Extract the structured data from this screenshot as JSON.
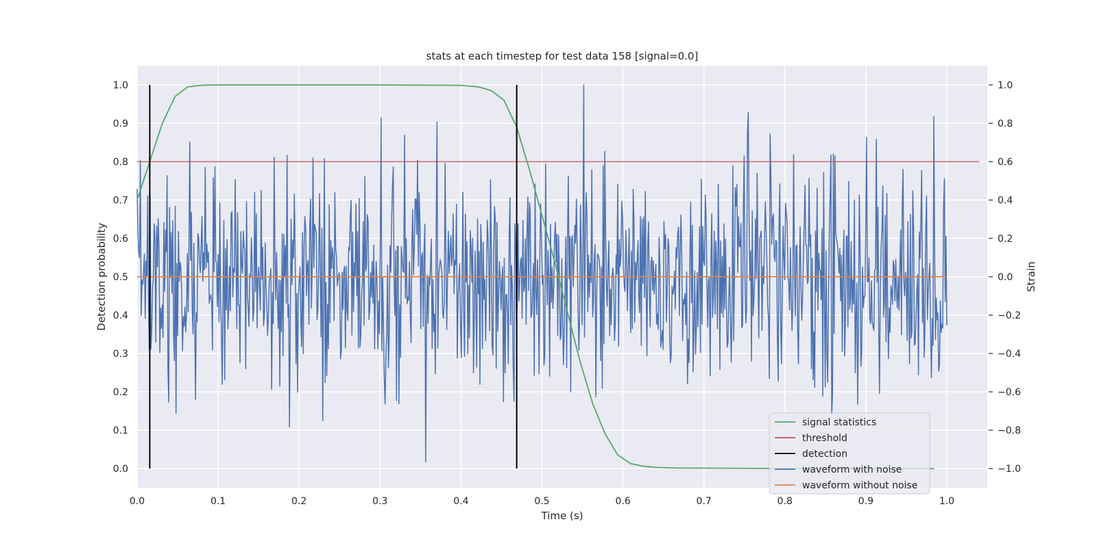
{
  "chart_data": {
    "type": "line",
    "title": "stats at each timestep for test data 158 [signal=0.0]",
    "xlabel": "Time (s)",
    "ylabel_left": "Detection probability",
    "ylabel_right": "Strain",
    "xlim": [
      0.0,
      1.05
    ],
    "ylim_left": [
      -0.05,
      1.05
    ],
    "ylim_right": [
      -1.1,
      1.1
    ],
    "x_ticks": [
      "0.0",
      "0.1",
      "0.2",
      "0.3",
      "0.4",
      "0.5",
      "0.6",
      "0.7",
      "0.8",
      "0.9",
      "1.0"
    ],
    "y_left_ticks": [
      "0.0",
      "0.1",
      "0.2",
      "0.3",
      "0.4",
      "0.5",
      "0.6",
      "0.7",
      "0.8",
      "0.9",
      "1.0"
    ],
    "y_right_ticks": [
      "−1.0",
      "−0.8",
      "−0.6",
      "−0.4",
      "−0.2",
      "0.0",
      "0.2",
      "0.4",
      "0.6",
      "0.8",
      "1.0"
    ],
    "grid": true,
    "legend_position": "bottom-right",
    "series": [
      {
        "name": "signal statistics",
        "color": "#55a868",
        "axis": "left",
        "x": [
          0.0,
          0.0156,
          0.0312,
          0.0469,
          0.0625,
          0.0781,
          0.0938,
          0.1094,
          0.2,
          0.3,
          0.4,
          0.4219,
          0.4375,
          0.4531,
          0.4688,
          0.4844,
          0.5,
          0.5156,
          0.5312,
          0.5469,
          0.5625,
          0.5781,
          0.5938,
          0.6094,
          0.625,
          0.6406,
          0.6562,
          0.6719,
          0.7,
          0.8,
          0.9,
          0.9844
        ],
        "y": [
          0.7,
          0.8,
          0.9,
          0.97,
          0.995,
          0.999,
          1.0,
          1.0,
          1.0,
          1.0,
          0.999,
          0.995,
          0.985,
          0.96,
          0.89,
          0.78,
          0.66,
          0.54,
          0.41,
          0.28,
          0.17,
          0.09,
          0.035,
          0.013,
          0.006,
          0.003,
          0.002,
          0.001,
          0.001,
          0.0,
          0.0,
          0.0
        ]
      },
      {
        "name": "threshold",
        "color": "#c44e52",
        "axis": "left",
        "x": [
          0.0,
          1.04
        ],
        "y": [
          0.8,
          0.8
        ]
      },
      {
        "name": "detection",
        "color": "#000000",
        "axis": "left",
        "x": [
          0.0156,
          0.4688
        ],
        "y_range": [
          0.0,
          1.0
        ]
      },
      {
        "name": "waveform with noise",
        "color": "#4c72b0",
        "axis": "right",
        "x_range": [
          0.0,
          1.0
        ],
        "n_points": 1000,
        "y_distribution": "noise, approx. mean 0.0, std 0.3, range -1.0 to 1.0"
      },
      {
        "name": "waveform without noise",
        "color": "#dd8452",
        "axis": "right",
        "x": [
          0.0,
          1.0
        ],
        "y": [
          0.0,
          0.0
        ]
      }
    ]
  }
}
